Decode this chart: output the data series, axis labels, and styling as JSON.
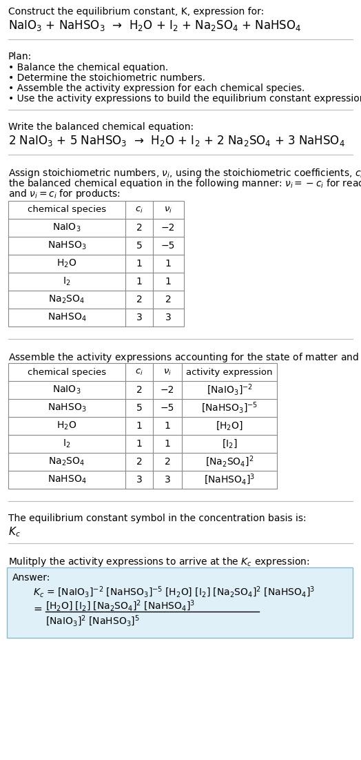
{
  "title_line1": "Construct the equilibrium constant, K, expression for:",
  "title_line2": "NaIO$_3$ + NaHSO$_3$  →  H$_2$O + I$_2$ + Na$_2$SO$_4$ + NaHSO$_4$",
  "plan_header": "Plan:",
  "plan_bullets": [
    "• Balance the chemical equation.",
    "• Determine the stoichiometric numbers.",
    "• Assemble the activity expression for each chemical species.",
    "• Use the activity expressions to build the equilibrium constant expression."
  ],
  "balanced_header": "Write the balanced chemical equation:",
  "balanced_eq": "2 NaIO$_3$ + 5 NaHSO$_3$  →  H$_2$O + I$_2$ + 2 Na$_2$SO$_4$ + 3 NaHSO$_4$",
  "stoich_intro_lines": [
    "Assign stoichiometric numbers, $\\nu_i$, using the stoichiometric coefficients, $c_i$, from",
    "the balanced chemical equation in the following manner: $\\nu_i = -c_i$ for reactants",
    "and $\\nu_i = c_i$ for products:"
  ],
  "table1_headers": [
    "chemical species",
    "$c_i$",
    "$\\nu_i$"
  ],
  "table1_rows": [
    [
      "NaIO$_3$",
      "2",
      "−2"
    ],
    [
      "NaHSO$_3$",
      "5",
      "−5"
    ],
    [
      "H$_2$O",
      "1",
      "1"
    ],
    [
      "I$_2$",
      "1",
      "1"
    ],
    [
      "Na$_2$SO$_4$",
      "2",
      "2"
    ],
    [
      "NaHSO$_4$",
      "3",
      "3"
    ]
  ],
  "activity_intro": "Assemble the activity expressions accounting for the state of matter and $\\nu_i$:",
  "table2_headers": [
    "chemical species",
    "$c_i$",
    "$\\nu_i$",
    "activity expression"
  ],
  "table2_rows": [
    [
      "NaIO$_3$",
      "2",
      "−2",
      "[NaIO$_3$]$^{-2}$"
    ],
    [
      "NaHSO$_3$",
      "5",
      "−5",
      "[NaHSO$_3$]$^{-5}$"
    ],
    [
      "H$_2$O",
      "1",
      "1",
      "[H$_2$O]"
    ],
    [
      "I$_2$",
      "1",
      "1",
      "[I$_2$]"
    ],
    [
      "Na$_2$SO$_4$",
      "2",
      "2",
      "[Na$_2$SO$_4$]$^2$"
    ],
    [
      "NaHSO$_4$",
      "3",
      "3",
      "[NaHSO$_4$]$^3$"
    ]
  ],
  "kc_intro": "The equilibrium constant symbol in the concentration basis is:",
  "kc_symbol": "$K_c$",
  "multiply_intro": "Mulitply the activity expressions to arrive at the $K_c$ expression:",
  "answer_label": "Answer:",
  "answer_line1": "$K_c$ = [NaIO$_3$]$^{-2}$ [NaHSO$_3$]$^{-5}$ [H$_2$O] [I$_2$] [Na$_2$SO$_4$]$^2$ [NaHSO$_4$]$^3$",
  "answer_eq_lhs": "=",
  "answer_numer": "[H$_2$O] [I$_2$] [Na$_2$SO$_4$]$^2$ [NaHSO$_4$]$^3$",
  "answer_denom": "[NaIO$_3$]$^2$ [NaHSO$_3$]$^5$",
  "bg_color": "#ffffff",
  "answer_box_color": "#e0f0f8",
  "answer_box_border": "#88bbcc",
  "table_border_color": "#888888",
  "sep_color": "#bbbbbb"
}
